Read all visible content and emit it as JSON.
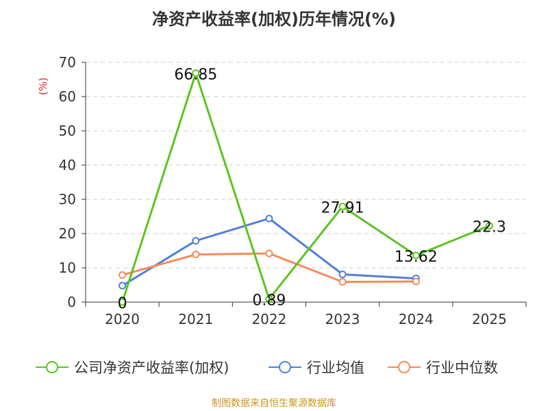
{
  "chart_data": {
    "type": "line",
    "title": "净资产收益率(加权)历年情况(%)",
    "ylabel": "(%)",
    "xlabel": "",
    "categories": [
      "2020",
      "2021",
      "2022",
      "2023",
      "2024",
      "2025"
    ],
    "ylim": [
      0,
      70
    ],
    "yticks": [
      0,
      10,
      20,
      30,
      40,
      50,
      60,
      70
    ],
    "grid": true,
    "legend_position": "bottom",
    "series": [
      {
        "name": "公司净资产收益率(加权)",
        "color": "#5cc41f",
        "values": [
          0,
          66.85,
          0.89,
          27.91,
          13.62,
          22.3
        ],
        "labels": [
          "0",
          "66.85",
          "0.89",
          "27.91",
          "13.62",
          "22.3"
        ]
      },
      {
        "name": "行业均值",
        "color": "#4f7fd9",
        "values": [
          4.8,
          17.9,
          24.4,
          8.1,
          6.9,
          null
        ]
      },
      {
        "name": "行业中位数",
        "color": "#f48b5c",
        "values": [
          7.9,
          13.9,
          14.2,
          5.9,
          6.0,
          null
        ]
      }
    ]
  },
  "legend": {
    "items": [
      "公司净资产收益率(加权)",
      "行业均值",
      "行业中位数"
    ]
  },
  "source": "制图数据来自恒生聚源数据库"
}
